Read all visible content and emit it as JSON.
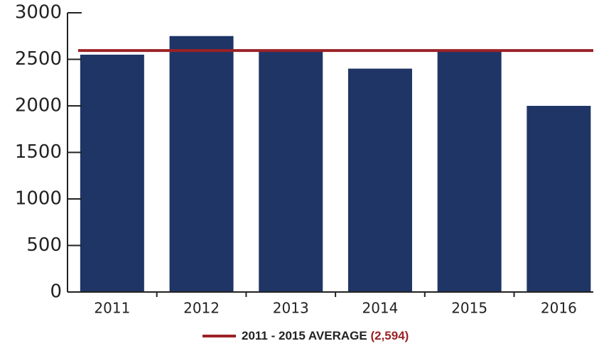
{
  "chart_data": {
    "type": "bar",
    "categories": [
      "2011",
      "2012",
      "2013",
      "2014",
      "2015",
      "2016"
    ],
    "values": [
      2550,
      2750,
      2600,
      2400,
      2600,
      2000
    ],
    "color": "#1f3566",
    "ylim": [
      0,
      3000
    ],
    "yticks": [
      0,
      500,
      1000,
      1500,
      2000,
      2500,
      3000
    ],
    "reference_line": {
      "name": "2011 - 2015 AVERAGE",
      "value": 2594,
      "value_label": "(2,594)",
      "color": "#9b2226"
    }
  }
}
